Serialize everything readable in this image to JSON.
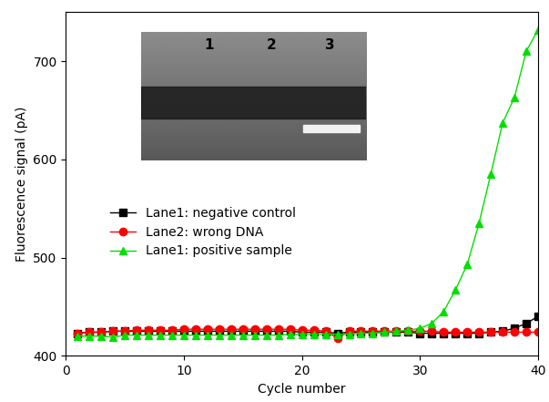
{
  "chart_data": {
    "type": "line",
    "x_label": "Cycle number",
    "y_label": "Fluorescence signal (pA)",
    "annotations": [
      "1",
      "2",
      "3"
    ],
    "x": [
      1,
      2,
      3,
      4,
      5,
      6,
      7,
      8,
      9,
      10,
      11,
      12,
      13,
      14,
      15,
      16,
      17,
      18,
      19,
      20,
      21,
      22,
      23,
      24,
      25,
      26,
      27,
      28,
      29,
      30,
      31,
      32,
      33,
      34,
      35,
      36,
      37,
      38,
      39,
      40
    ],
    "series": [
      {
        "name": "Lane1: negative control",
        "color": "#000000",
        "marker": "square",
        "values": [
          423,
          424,
          424,
          425,
          425,
          425,
          425,
          425,
          425,
          425,
          425,
          425,
          425,
          425,
          425,
          425,
          425,
          425,
          425,
          424,
          424,
          424,
          423,
          424,
          424,
          424,
          424,
          424,
          424,
          423,
          423,
          423,
          423,
          423,
          423,
          424,
          425,
          428,
          433,
          440
        ]
      },
      {
        "name": "Lane2: wrong DNA",
        "color": "#ff0000",
        "marker": "circle",
        "values": [
          423,
          424,
          424,
          425,
          425,
          426,
          426,
          426,
          426,
          427,
          427,
          427,
          427,
          427,
          427,
          427,
          427,
          427,
          427,
          426,
          426,
          425,
          418,
          425,
          425,
          425,
          425,
          425,
          425,
          425,
          425,
          424,
          424,
          424,
          424,
          424,
          424,
          424,
          424,
          424
        ]
      },
      {
        "name": "Lane1: positive sample",
        "color": "#00e000",
        "marker": "triangle",
        "values": [
          420,
          420,
          420,
          419,
          421,
          421,
          421,
          421,
          421,
          421,
          421,
          421,
          421,
          421,
          421,
          421,
          421,
          421,
          422,
          422,
          422,
          422,
          422,
          422,
          423,
          423,
          424,
          425,
          426,
          428,
          433,
          445,
          467,
          493,
          535,
          585,
          637,
          663,
          710,
          732
        ]
      }
    ],
    "xlim": [
      0,
      40
    ],
    "xticks": [
      0,
      10,
      20,
      30,
      40
    ],
    "ylim": [
      400,
      750
    ],
    "yticks": [
      400,
      500,
      600,
      700
    ],
    "legend": "center left"
  }
}
